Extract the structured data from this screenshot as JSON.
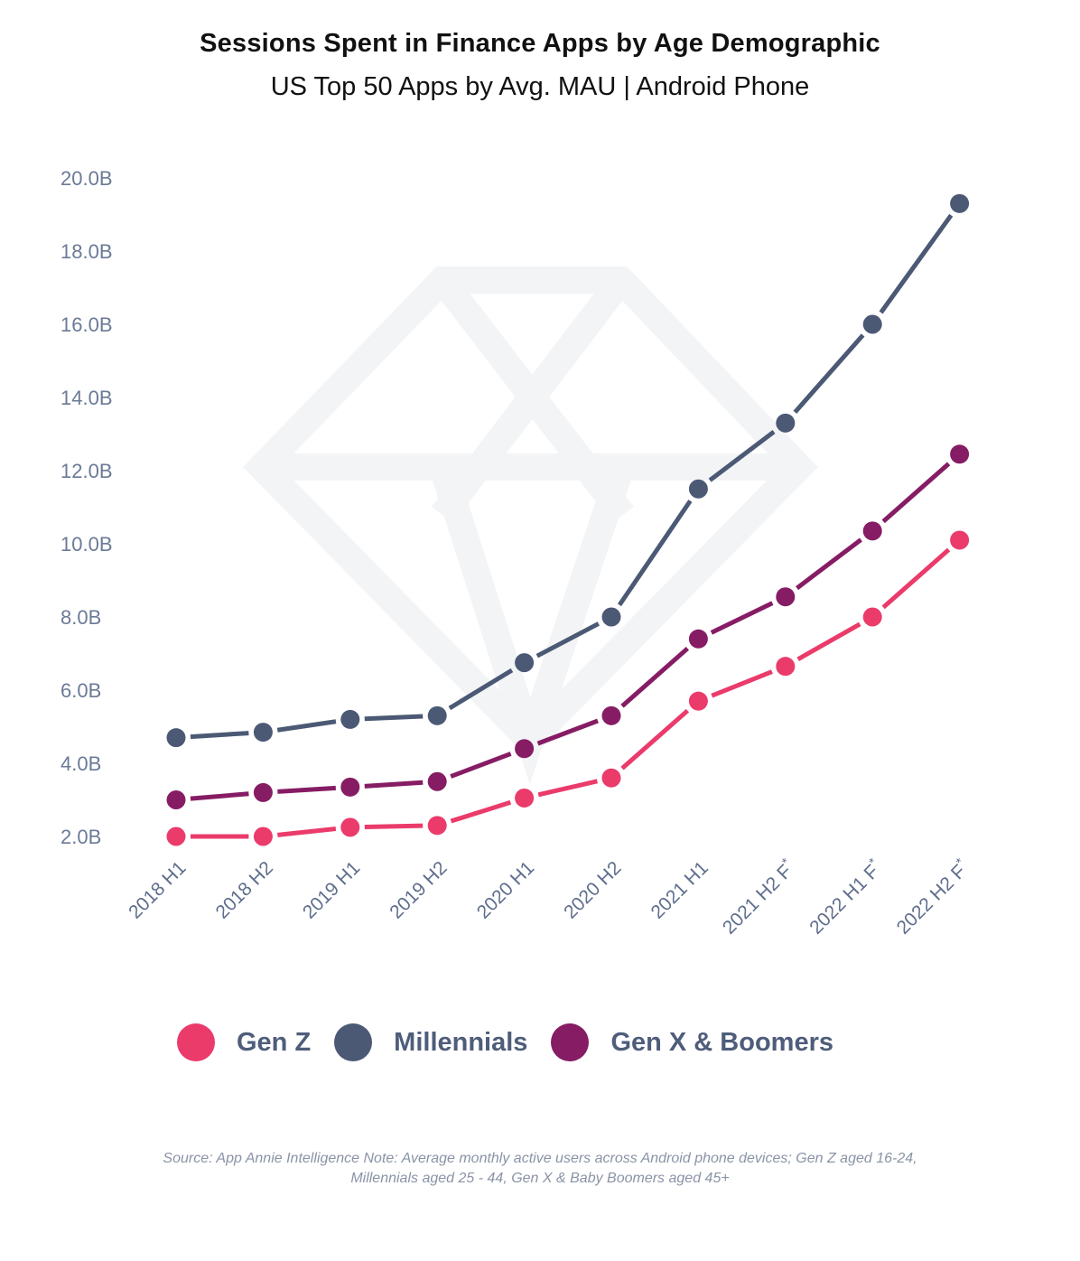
{
  "header": {
    "title": "Sessions Spent in Finance Apps by Age Demographic",
    "subtitle": "US Top 50 Apps by Avg. MAU | Android Phone"
  },
  "legend": [
    {
      "name": "Gen Z",
      "color": "#ea3b6b"
    },
    {
      "name": "Millennials",
      "color": "#4b5975"
    },
    {
      "name": "Gen X & Boomers",
      "color": "#861c64"
    }
  ],
  "footer": {
    "note": "Source: App Annie Intelligence Note: Average monthly active users across Android phone devices; Gen Z aged 16-24, Millennials aged 25 - 44, Gen X & Baby Boomers aged 45+"
  },
  "chart_data": {
    "type": "line",
    "title": "Sessions Spent in Finance Apps by Age Demographic",
    "subtitle": "US Top 50 Apps by Avg. MAU | Android Phone",
    "xlabel": "",
    "ylabel": "",
    "categories": [
      "2018 H1",
      "2018 H2",
      "2019 H1",
      "2019 H2",
      "2020 H1",
      "2020 H2",
      "2021 H1",
      "2021 H2 F*",
      "2022 H1 F*",
      "2022 H2 F*"
    ],
    "y_ticks": [
      "2.0B",
      "4.0B",
      "6.0B",
      "8.0B",
      "10.0B",
      "12.0B",
      "14.0B",
      "16.0B",
      "18.0B",
      "20.0B"
    ],
    "y_tick_values": [
      2,
      4,
      6,
      8,
      10,
      12,
      14,
      16,
      18,
      20
    ],
    "ylim": [
      2,
      20
    ],
    "units": "billions of sessions",
    "grid": false,
    "legend_position": "bottom",
    "watermark": "diamond",
    "series": [
      {
        "name": "Millennials",
        "color": "#4b5975",
        "values": [
          4.7,
          4.85,
          5.2,
          5.3,
          6.75,
          8.0,
          11.5,
          13.3,
          16.0,
          19.3
        ]
      },
      {
        "name": "Gen X & Boomers",
        "color": "#861c64",
        "values": [
          3.0,
          3.2,
          3.35,
          3.5,
          4.4,
          5.3,
          7.4,
          8.55,
          10.35,
          12.45
        ]
      },
      {
        "name": "Gen Z",
        "color": "#ea3b6b",
        "values": [
          2.0,
          2.0,
          2.25,
          2.3,
          3.05,
          3.6,
          5.7,
          6.65,
          8.0,
          10.1
        ]
      }
    ]
  }
}
